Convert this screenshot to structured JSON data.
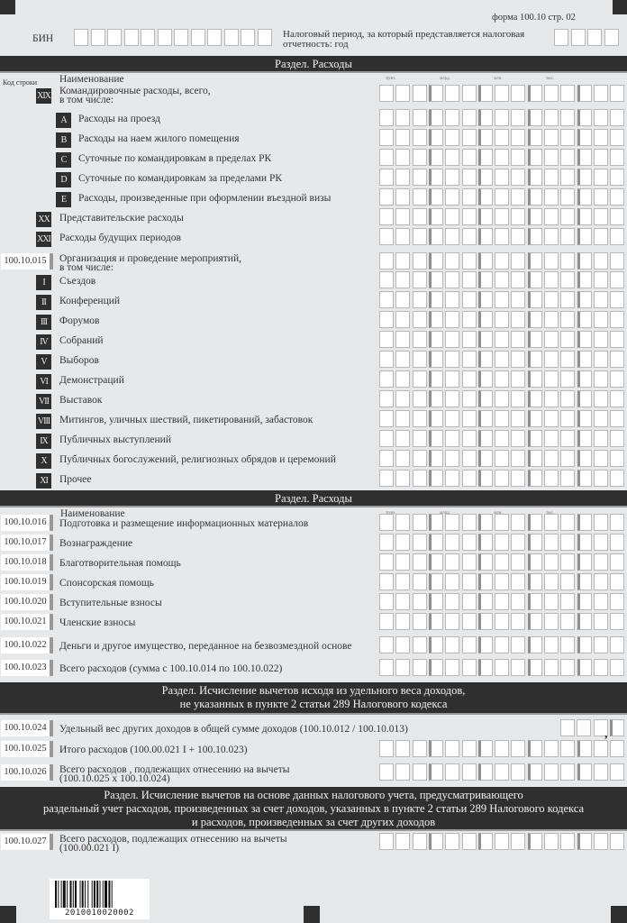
{
  "header": {
    "form_label": "форма 100.10 стр. 02",
    "bin_label": "БИН",
    "period_label_line1": "Налоговый период, за который представляется налоговая",
    "period_label_line2": "отчетность: год"
  },
  "units": [
    "трлн.",
    "млрд.",
    "млн.",
    "тыс."
  ],
  "section1": {
    "title": "Раздел. Расходы",
    "code_header": "Код строки",
    "name_header": "Наименование",
    "rows": [
      {
        "badge": "XIX",
        "label": "Командировочные расходы, всего,",
        "label2": "в том числе:"
      },
      {
        "badge": "A",
        "label": "Расходы на проезд"
      },
      {
        "badge": "B",
        "label": "Расходы на наем жилого помещения"
      },
      {
        "badge": "C",
        "label": "Суточные по командировкам в пределах РК"
      },
      {
        "badge": "D",
        "label": "Суточные по командировкам за пределами РК"
      },
      {
        "badge": "E",
        "label": "Расходы, произведенные при оформлении въездной визы"
      },
      {
        "badge": "XX",
        "label": "Представительские расходы"
      },
      {
        "badge": "XXI",
        "label": "Расходы будущих периодов"
      },
      {
        "code": "100.10.015",
        "label": "Организация и проведение мероприятий,",
        "label2": "в том числе:"
      },
      {
        "badge": "I",
        "label": "Съездов"
      },
      {
        "badge": "II",
        "label": "Конференций"
      },
      {
        "badge": "III",
        "label": "Форумов"
      },
      {
        "badge": "IV",
        "label": "Собраний"
      },
      {
        "badge": "V",
        "label": "Выборов"
      },
      {
        "badge": "VI",
        "label": "Демонстраций"
      },
      {
        "badge": "VII",
        "label": "Выставок"
      },
      {
        "badge": "VIII",
        "label": "Митингов, уличных шествий, пикетирований, забастовок"
      },
      {
        "badge": "IX",
        "label": "Публичных выступлений"
      },
      {
        "badge": "X",
        "label": "Публичных богослужений, религиозных обрядов и церемоний"
      },
      {
        "badge": "XI",
        "label": "Прочее"
      }
    ]
  },
  "section2": {
    "title": "Раздел. Расходы",
    "name_header": "Наименование",
    "rows": [
      {
        "code": "100.10.016",
        "label": "Подготовка и размещение информационных материалов"
      },
      {
        "code": "100.10.017",
        "label": "Вознаграждение"
      },
      {
        "code": "100.10.018",
        "label": "Благотворительная помощь"
      },
      {
        "code": "100.10.019",
        "label": "Спонсорская помощь"
      },
      {
        "code": "100.10.020",
        "label": "Вступительные взносы"
      },
      {
        "code": "100.10.021",
        "label": "Членские взносы"
      },
      {
        "code": "100.10.022",
        "label": "Деньги и другое имущество, переданное на безвозмездной основе"
      },
      {
        "code": "100.10.023",
        "label": "Всего расходов (сумма с 100.10.014 по 100.10.022)"
      }
    ]
  },
  "section3": {
    "title_line1": "Раздел. Исчисление вычетов исходя из удельного веса доходов,",
    "title_line2": "не указанных в пункте 2 статьи 289 Налогового кодекса",
    "rows": [
      {
        "code": "100.10.024",
        "label": "Удельный вес других доходов в общей сумме доходов (100.10.012 / 100.10.013)",
        "decimal_separator": ","
      },
      {
        "code": "100.10.025",
        "label": "Итого расходов (100.00.021 I + 100.10.023)"
      },
      {
        "code": "100.10.026",
        "label": "Всего расходов , подлежащих отнесению на вычеты",
        "label2": "(100.10.025 x 100.10.024)"
      }
    ]
  },
  "section4": {
    "title_line1": "Раздел. Исчисление вычетов на основе данных налогового учета, предусматривающего",
    "title_line2": "раздельный учет расходов, произведенных за счет доходов, указанных в пункте 2 статьи 289 Налогового кодекса",
    "title_line3": "и расходов, произведенных за счет других доходов",
    "rows": [
      {
        "code": "100.10.027",
        "label": "Всего расходов, подлежащих отнесению на вычеты",
        "label2": "(100.00.021 I)"
      }
    ]
  },
  "barcode": {
    "number": "2010010020002"
  }
}
